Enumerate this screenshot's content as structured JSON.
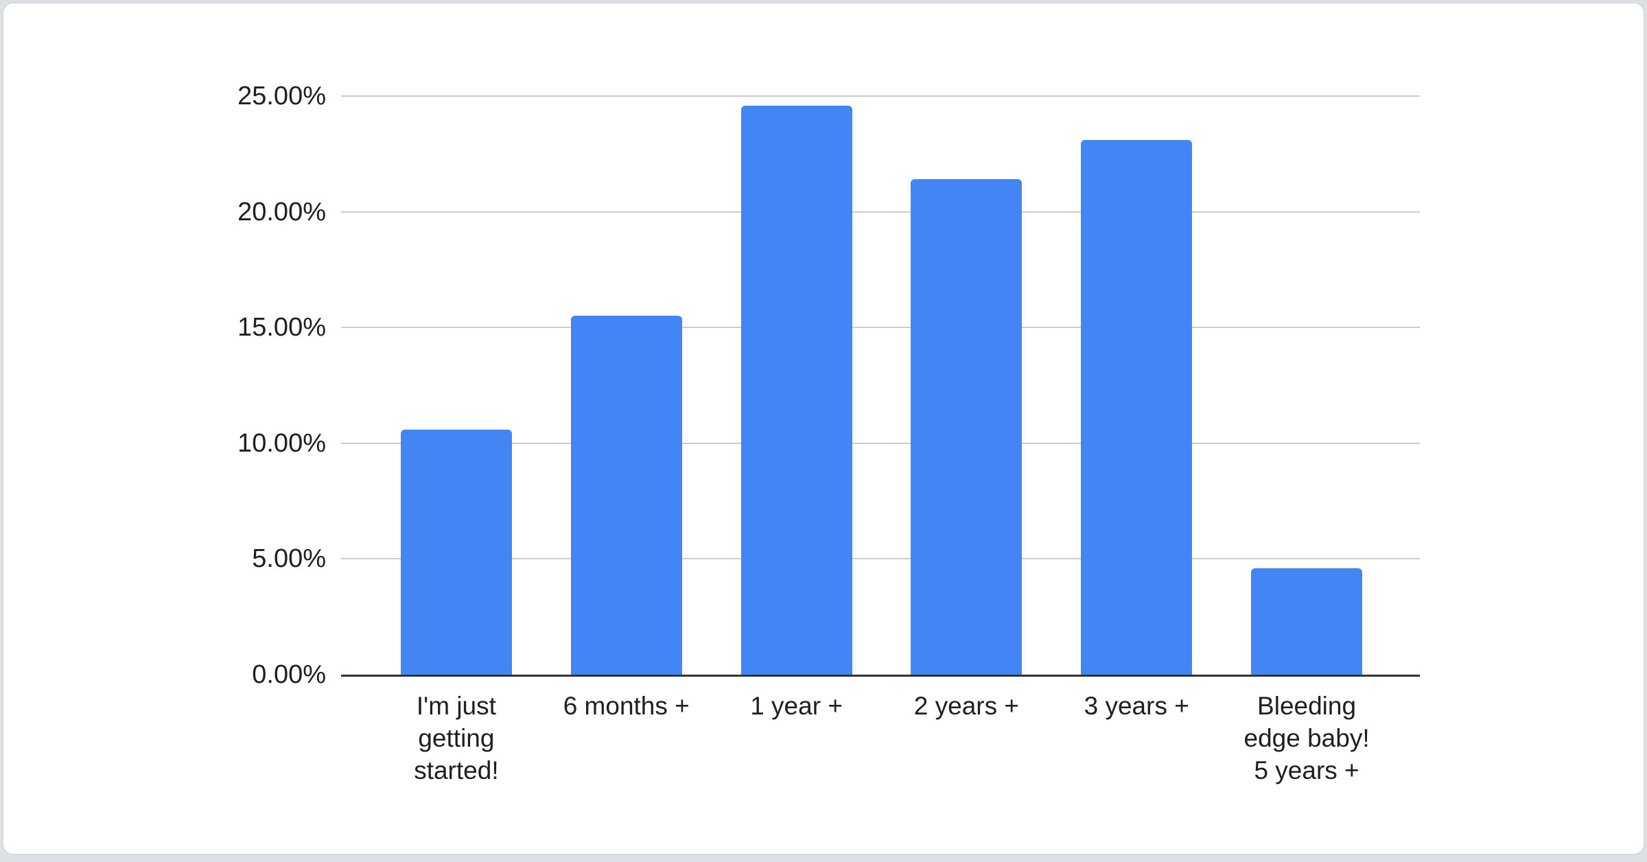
{
  "chart_data": {
    "type": "bar",
    "title": "",
    "xlabel": "",
    "ylabel": "",
    "categories": [
      "I'm just getting started!",
      "6 months +",
      "1 year +",
      "2 years +",
      "3 years +",
      "Bleeding edge baby! 5 years +"
    ],
    "category_lines": [
      [
        "I'm just",
        "getting",
        "started!"
      ],
      [
        "6 months +"
      ],
      [
        "1 year +"
      ],
      [
        "2 years +"
      ],
      [
        "3 years +"
      ],
      [
        "Bleeding",
        "edge baby!",
        "5 years +"
      ]
    ],
    "values": [
      10.6,
      15.5,
      24.6,
      21.4,
      23.1,
      4.6
    ],
    "value_unit": "%",
    "ylim": [
      0,
      25
    ],
    "ytick_values": [
      0,
      5,
      10,
      15,
      20,
      25
    ],
    "ytick_labels": [
      "0.00%",
      "5.00%",
      "10.00%",
      "15.00%",
      "20.00%",
      "25.00%"
    ],
    "grid": true,
    "legend": "none",
    "bar_color": "#4285f4"
  },
  "colors": {
    "bar": "#4285f4",
    "gridline": "#cccccc",
    "axis_line": "#333333",
    "label_text": "#1f1f1f",
    "card_background": "#ffffff",
    "card_border": "#d6d9dc",
    "page_background": "#dde0e4"
  }
}
